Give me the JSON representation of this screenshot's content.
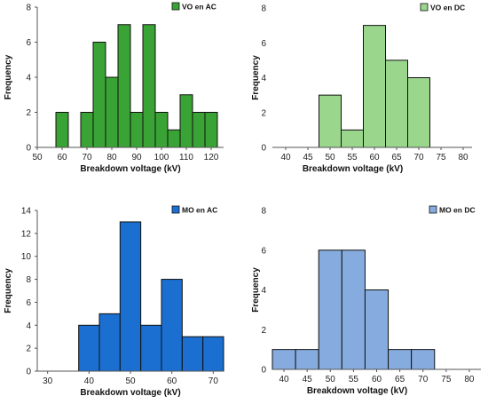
{
  "chart_data": [
    {
      "type": "bar",
      "legend": "VO en AC",
      "legend_position": "top-right",
      "xlabel": "Breakdown voltage (kV)",
      "ylabel": "Frequency",
      "xlim": [
        50,
        125
      ],
      "ylim": [
        0,
        8
      ],
      "xticks": [
        50,
        60,
        70,
        80,
        90,
        100,
        110,
        120
      ],
      "yticks": [
        0,
        2,
        4,
        6,
        8
      ],
      "bin_width": 5,
      "bin_starts": [
        57.5,
        67.5,
        72.5,
        77.5,
        82.5,
        87.5,
        92.5,
        97.5,
        102.5,
        107.5,
        112.5,
        117.5
      ],
      "values": [
        2,
        2,
        6,
        4,
        7,
        2,
        7,
        2,
        1,
        3,
        2,
        2
      ],
      "color": "#3aa335"
    },
    {
      "type": "bar",
      "legend": "VO en DC",
      "legend_position": "top-right",
      "xlabel": "Breakdown voltage (kV)",
      "ylabel": "Frequency",
      "xlim": [
        37,
        82
      ],
      "ylim": [
        0,
        8
      ],
      "xticks": [
        40,
        45,
        50,
        55,
        60,
        65,
        70,
        75,
        80
      ],
      "yticks": [
        0,
        2,
        4,
        6,
        8
      ],
      "bin_width": 5,
      "bin_starts": [
        47.5,
        52.5,
        57.5,
        62.5,
        67.5
      ],
      "values": [
        3,
        1,
        7,
        5,
        4
      ],
      "color": "#9ad68c"
    },
    {
      "type": "bar",
      "legend": "MO en AC",
      "legend_position": "top-right",
      "xlabel": "Breakdown voltage (kV)",
      "ylabel": "Frequency",
      "xlim": [
        27.5,
        72.5
      ],
      "ylim": [
        0,
        14
      ],
      "xticks": [
        30,
        40,
        50,
        60,
        70
      ],
      "yticks": [
        0,
        2,
        4,
        6,
        8,
        10,
        12,
        14
      ],
      "bin_width": 5,
      "bin_starts": [
        37.5,
        42.5,
        47.5,
        52.5,
        57.5,
        62.5,
        67.5
      ],
      "values": [
        4,
        5,
        13,
        4,
        8,
        3,
        3
      ],
      "color": "#1a6fd1"
    },
    {
      "type": "bar",
      "legend": "MO en DC",
      "legend_position": "top-right",
      "xlabel": "Breakdown voltage (kV)",
      "ylabel": "Frequency",
      "xlim": [
        37.5,
        82.5
      ],
      "ylim": [
        0,
        8
      ],
      "xticks": [
        40,
        45,
        50,
        55,
        60,
        65,
        70,
        75,
        80
      ],
      "yticks": [
        0,
        2,
        4,
        6,
        8
      ],
      "bin_width": 5,
      "bin_starts": [
        37.5,
        42.5,
        47.5,
        52.5,
        57.5,
        62.5,
        67.5
      ],
      "values": [
        1,
        1,
        6,
        6,
        4,
        1,
        1
      ],
      "color": "#86acdf"
    }
  ]
}
